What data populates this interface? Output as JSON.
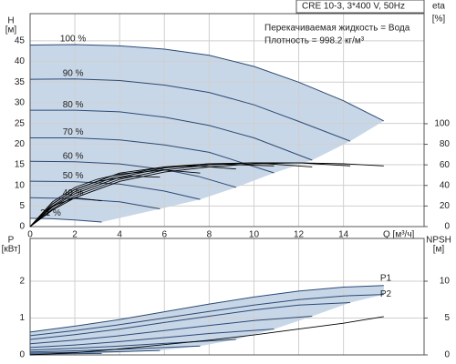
{
  "chart_data": [
    {
      "type": "line",
      "info": [
        "CRE 10-3, 3*400 V, 50Hz",
        "Перекачиваемая жидкость = Вода",
        "Плотность = 998.2 кг/м³"
      ],
      "ylabel": "H",
      "yunit": "[м]",
      "y2label": "eta",
      "y2unit": "[%]",
      "xlabel": "Q [м³/ч]",
      "xlim": [
        0,
        17.6
      ],
      "ylim": [
        0,
        51.6
      ],
      "y2lim": [
        0,
        207
      ],
      "xticks": [
        0,
        2,
        4,
        6,
        8,
        10,
        12,
        14
      ],
      "yticks": [
        0,
        5,
        10,
        15,
        20,
        25,
        30,
        35,
        40,
        45
      ],
      "y2ticks": [
        0,
        20,
        40,
        60,
        80,
        100
      ],
      "grid": true,
      "area_color": "#c8d7e8",
      "series": [
        {
          "name": "100 %",
          "color": "#2b4a74",
          "x": [
            0,
            2,
            4,
            6,
            8,
            10,
            12,
            14,
            15.8
          ],
          "values": [
            44,
            44.1,
            43.8,
            43,
            41.5,
            38.8,
            35,
            30.5,
            25.6
          ]
        },
        {
          "name": "90 %",
          "color": "#2b4a74",
          "x": [
            0,
            2,
            4,
            6,
            8,
            10,
            12,
            14.3
          ],
          "values": [
            35.7,
            35.8,
            35.4,
            34.3,
            32.5,
            29.5,
            25.5,
            20.7
          ]
        },
        {
          "name": "80 %",
          "color": "#2b4a74",
          "x": [
            0,
            2,
            4,
            6,
            8,
            10,
            12.6
          ],
          "values": [
            28.2,
            28.2,
            27.8,
            26.5,
            24.5,
            21.5,
            16.1
          ]
        },
        {
          "name": "70 %",
          "color": "#2b4a74",
          "x": [
            0,
            2,
            4,
            6,
            8,
            10.9
          ],
          "values": [
            21.5,
            21.5,
            21,
            19.8,
            18,
            13
          ]
        },
        {
          "name": "60 %",
          "color": "#2b4a74",
          "x": [
            0,
            2,
            4,
            6,
            7.5,
            9.2
          ],
          "values": [
            15.8,
            15.7,
            15.2,
            13.8,
            12.2,
            9.5
          ]
        },
        {
          "name": "50 %",
          "color": "#2b4a74",
          "x": [
            0,
            2,
            4,
            6,
            7.6
          ],
          "values": [
            11,
            10.9,
            10.3,
            8.6,
            6.6
          ]
        },
        {
          "name": "40 %",
          "color": "#2b4a74",
          "x": [
            0,
            2,
            4,
            5.8
          ],
          "values": [
            7,
            6.8,
            6,
            4.3
          ]
        },
        {
          "name": "21 %",
          "color": "#2b4a74",
          "x": [
            0,
            1,
            2,
            3.2
          ],
          "values": [
            2,
            1.9,
            1.6,
            1.1
          ]
        },
        {
          "axis": "y2",
          "color": "#000000",
          "x": [
            0,
            1,
            2,
            4,
            6,
            8,
            10,
            12,
            14,
            15.8
          ],
          "values": [
            0,
            16,
            28,
            44,
            53,
            58,
            61,
            62,
            61,
            59
          ]
        },
        {
          "axis": "y2",
          "color": "#000000",
          "x": [
            0,
            1,
            2,
            4,
            6,
            8,
            10,
            12,
            14.3
          ],
          "values": [
            0,
            17,
            30,
            46,
            55,
            60,
            62,
            62,
            59
          ]
        },
        {
          "axis": "y2",
          "color": "#000000",
          "x": [
            0,
            1,
            2,
            4,
            6,
            8,
            10,
            12.6
          ],
          "values": [
            0,
            19,
            32,
            48,
            57,
            61,
            62,
            58
          ]
        },
        {
          "axis": "y2",
          "color": "#000000",
          "x": [
            0,
            1,
            2,
            4,
            6,
            8,
            10.9
          ],
          "values": [
            0,
            20,
            34,
            50,
            58,
            61,
            59
          ]
        },
        {
          "axis": "y2",
          "color": "#000000",
          "x": [
            0,
            1,
            2,
            4,
            6,
            7.5,
            9.2
          ],
          "values": [
            0,
            22,
            36,
            52,
            58,
            59,
            56
          ]
        },
        {
          "axis": "y2",
          "color": "#000000",
          "x": [
            0,
            1,
            2,
            3,
            4,
            6,
            7.6
          ],
          "values": [
            0,
            24,
            38,
            46,
            51,
            55,
            52
          ]
        },
        {
          "axis": "y2",
          "color": "#000000",
          "x": [
            0,
            1,
            2,
            3,
            4.5,
            5.8
          ],
          "values": [
            0,
            22,
            36,
            44,
            49,
            48
          ]
        },
        {
          "axis": "y2",
          "color": "#000000",
          "x": [
            0,
            0.5,
            1,
            2,
            3.2
          ],
          "values": [
            0,
            12,
            20,
            28,
            25
          ]
        }
      ]
    },
    {
      "type": "line",
      "ylabel": "P",
      "yunit": "[кВт]",
      "y2label": "NPSH",
      "y2unit": "[м]",
      "xlim": [
        0,
        17.6
      ],
      "ylim": [
        0,
        3.16
      ],
      "y2lim": [
        0,
        15.8
      ],
      "xticks": [
        0,
        2,
        4,
        6,
        8,
        10,
        12,
        14
      ],
      "yticks": [
        0,
        1,
        2
      ],
      "y2ticks": [
        0,
        5,
        10
      ],
      "grid": true,
      "area_color": "#c8d7e8",
      "series": [
        {
          "name": "P1",
          "color": "#2b4a74",
          "x": [
            0,
            2,
            4,
            6,
            8,
            10,
            12,
            14,
            15.8
          ],
          "values": [
            0.62,
            0.78,
            0.96,
            1.17,
            1.38,
            1.57,
            1.73,
            1.84,
            1.88
          ]
        },
        {
          "name": "P2",
          "color": "#2b4a74",
          "x": [
            0,
            2,
            4,
            6,
            8,
            10,
            12,
            14,
            15.8
          ],
          "values": [
            0.52,
            0.66,
            0.82,
            1.0,
            1.18,
            1.35,
            1.5,
            1.6,
            1.64
          ]
        },
        {
          "color": "#2b4a74",
          "x": [
            0,
            2,
            4,
            6,
            8,
            10,
            12,
            14.3
          ],
          "values": [
            0.42,
            0.55,
            0.7,
            0.88,
            1.05,
            1.22,
            1.35,
            1.42
          ]
        },
        {
          "color": "#2b4a74",
          "x": [
            0,
            2,
            4,
            6,
            8,
            10,
            12.6
          ],
          "values": [
            0.3,
            0.4,
            0.52,
            0.66,
            0.8,
            0.93,
            1.05
          ]
        },
        {
          "color": "#2b4a74",
          "x": [
            0,
            2,
            4,
            6,
            8,
            10.9
          ],
          "values": [
            0.2,
            0.27,
            0.36,
            0.47,
            0.58,
            0.7
          ]
        },
        {
          "color": "#2b4a74",
          "x": [
            0,
            2,
            4,
            6,
            9.2
          ],
          "values": [
            0.13,
            0.18,
            0.24,
            0.31,
            0.42
          ]
        },
        {
          "color": "#2b4a74",
          "x": [
            0,
            2,
            4,
            6,
            7.6
          ],
          "values": [
            0.08,
            0.11,
            0.15,
            0.2,
            0.24
          ]
        },
        {
          "color": "#2b4a74",
          "x": [
            0,
            2,
            4,
            5.8
          ],
          "values": [
            0.05,
            0.07,
            0.09,
            0.12
          ]
        },
        {
          "color": "#2b4a74",
          "x": [
            0,
            1.5,
            3.2
          ],
          "values": [
            0.02,
            0.03,
            0.04
          ]
        },
        {
          "axis": "y2",
          "color": "#000000",
          "x": [
            0,
            2,
            4,
            6,
            8,
            10,
            12,
            14,
            15.8
          ],
          "values": [
            0,
            0.3,
            0.8,
            1.4,
            2.0,
            2.7,
            3.5,
            4.3,
            5.2
          ]
        }
      ]
    }
  ]
}
